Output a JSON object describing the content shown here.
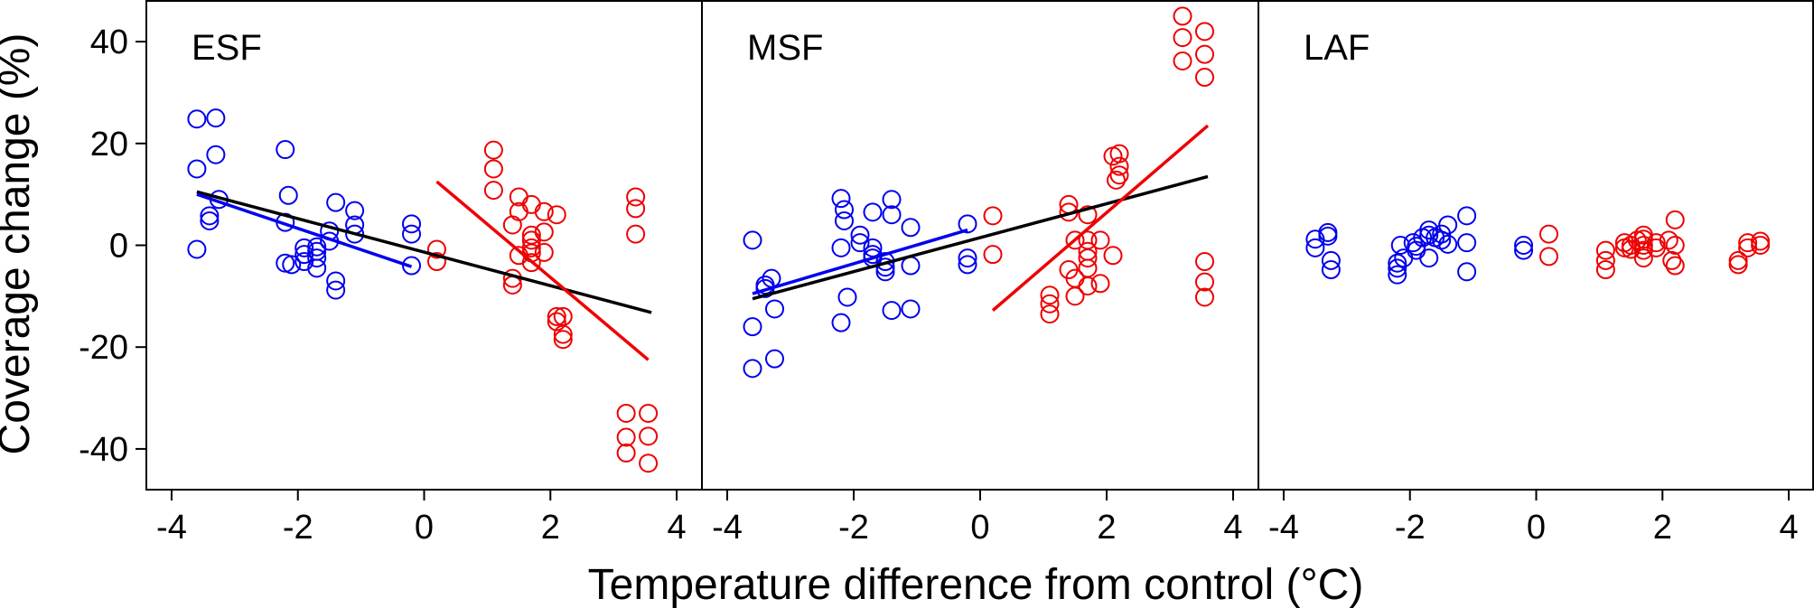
{
  "chart_data": {
    "type": "scatter",
    "xlabel": "Temperature difference from control (°C)",
    "ylabel": "Coverage change (%)",
    "xlim": [
      -4.4,
      4.4
    ],
    "ylim": [
      -48,
      48
    ],
    "xticks": [
      -4,
      -2,
      0,
      2,
      4
    ],
    "xtick_labels": [
      "-4",
      "-2",
      "0",
      "2",
      "4"
    ],
    "yticks": [
      -40,
      -20,
      0,
      20,
      40
    ],
    "ytick_labels": [
      "-40",
      "-20",
      "0",
      "20",
      "40"
    ],
    "colors": {
      "blue": "#0000ee",
      "red": "#ee0000",
      "black": "#000000"
    },
    "panels": [
      {
        "name": "ESF",
        "blue_points": [
          [
            -3.6,
            24.8
          ],
          [
            -3.6,
            15
          ],
          [
            -3.6,
            -0.8
          ],
          [
            -3.3,
            25
          ],
          [
            -3.3,
            17.8
          ],
          [
            -3.25,
            9
          ],
          [
            -3.4,
            5.8
          ],
          [
            -3.4,
            4.8
          ],
          [
            -2.2,
            18.8
          ],
          [
            -2.15,
            9.8
          ],
          [
            -2.2,
            4.5
          ],
          [
            -2.2,
            -3.5
          ],
          [
            -2.1,
            -3.8
          ],
          [
            -1.9,
            -0.5
          ],
          [
            -1.9,
            -1.8
          ],
          [
            -1.9,
            -3.2
          ],
          [
            -1.7,
            -0.3
          ],
          [
            -1.7,
            -1.2
          ],
          [
            -1.7,
            -2.5
          ],
          [
            -1.7,
            -4.5
          ],
          [
            -1.5,
            2.8
          ],
          [
            -1.5,
            0.8
          ],
          [
            -1.4,
            8.4
          ],
          [
            -1.4,
            -7
          ],
          [
            -1.4,
            -8.8
          ],
          [
            -1.1,
            6.8
          ],
          [
            -1.1,
            4
          ],
          [
            -1.1,
            2.2
          ],
          [
            -0.2,
            4.2
          ],
          [
            -0.2,
            2.2
          ],
          [
            -0.2,
            -4
          ]
        ],
        "red_points": [
          [
            0.2,
            -0.8
          ],
          [
            0.2,
            -3.2
          ],
          [
            1.1,
            18.7
          ],
          [
            1.1,
            15
          ],
          [
            1.1,
            10.8
          ],
          [
            1.4,
            4
          ],
          [
            1.4,
            -6.5
          ],
          [
            1.4,
            -7.8
          ],
          [
            1.5,
            9.5
          ],
          [
            1.5,
            6.6
          ],
          [
            1.5,
            -2
          ],
          [
            1.7,
            8
          ],
          [
            1.7,
            2
          ],
          [
            1.7,
            1
          ],
          [
            1.7,
            -0.5
          ],
          [
            1.7,
            -1.5
          ],
          [
            1.7,
            -3.4
          ],
          [
            1.9,
            6.6
          ],
          [
            1.9,
            2.6
          ],
          [
            1.9,
            -1.4
          ],
          [
            2.1,
            6
          ],
          [
            2.1,
            -14
          ],
          [
            2.1,
            -15
          ],
          [
            2.2,
            -14
          ],
          [
            2.2,
            -17.5
          ],
          [
            2.2,
            -18.5
          ],
          [
            3.2,
            -33
          ],
          [
            3.2,
            -37.7
          ],
          [
            3.2,
            -40.8
          ],
          [
            3.35,
            9.5
          ],
          [
            3.35,
            7.2
          ],
          [
            3.35,
            2.2
          ],
          [
            3.55,
            -33
          ],
          [
            3.55,
            -37.5
          ],
          [
            3.55,
            -42.8
          ]
        ],
        "lines": [
          {
            "color": "black",
            "x": [
              -3.6,
              3.6
            ],
            "y": [
              10.5,
              -13.2
            ]
          },
          {
            "color": "blue",
            "x": [
              -3.6,
              -0.2
            ],
            "y": [
              10,
              -4.2
            ]
          },
          {
            "color": "red",
            "x": [
              0.2,
              3.55
            ],
            "y": [
              12.5,
              -22.5
            ]
          }
        ]
      },
      {
        "name": "MSF",
        "blue_points": [
          [
            -3.6,
            1
          ],
          [
            -3.6,
            -16
          ],
          [
            -3.6,
            -24.2
          ],
          [
            -3.4,
            -7.8
          ],
          [
            -3.4,
            -8.5
          ],
          [
            -3.3,
            -6.5
          ],
          [
            -3.25,
            -12.5
          ],
          [
            -3.25,
            -22.3
          ],
          [
            -2.2,
            9.2
          ],
          [
            -2.15,
            7
          ],
          [
            -2.15,
            4.8
          ],
          [
            -2.2,
            -0.5
          ],
          [
            -2.1,
            -10.2
          ],
          [
            -2.2,
            -15.2
          ],
          [
            -1.9,
            2
          ],
          [
            -1.9,
            0.5
          ],
          [
            -1.7,
            6.5
          ],
          [
            -1.7,
            -0.5
          ],
          [
            -1.7,
            -1.8
          ],
          [
            -1.7,
            -2.5
          ],
          [
            -1.5,
            -3.2
          ],
          [
            -1.5,
            -4.3
          ],
          [
            -1.5,
            -5.2
          ],
          [
            -1.4,
            9
          ],
          [
            -1.4,
            6
          ],
          [
            -1.4,
            -12.8
          ],
          [
            -1.1,
            3.5
          ],
          [
            -1.1,
            -4
          ],
          [
            -1.1,
            -12.5
          ],
          [
            -0.2,
            4.2
          ],
          [
            -0.2,
            -2.5
          ],
          [
            -0.2,
            -3.8
          ]
        ],
        "red_points": [
          [
            0.2,
            5.8
          ],
          [
            0.2,
            -1.8
          ],
          [
            1.1,
            -9.8
          ],
          [
            1.1,
            -11.5
          ],
          [
            1.1,
            -13.5
          ],
          [
            1.4,
            8
          ],
          [
            1.4,
            6.5
          ],
          [
            1.4,
            -4.8
          ],
          [
            1.5,
            1
          ],
          [
            1.5,
            -6.5
          ],
          [
            1.5,
            -10
          ],
          [
            1.7,
            6
          ],
          [
            1.7,
            1
          ],
          [
            1.7,
            -1.2
          ],
          [
            1.7,
            -2.5
          ],
          [
            1.7,
            -4.5
          ],
          [
            1.7,
            -8
          ],
          [
            1.9,
            1
          ],
          [
            1.9,
            -7.5
          ],
          [
            2.1,
            17.5
          ],
          [
            2.15,
            12.8
          ],
          [
            2.2,
            18
          ],
          [
            2.2,
            15.5
          ],
          [
            2.2,
            13.8
          ],
          [
            2.1,
            -2
          ],
          [
            3.2,
            45
          ],
          [
            3.2,
            40.8
          ],
          [
            3.2,
            36.2
          ],
          [
            3.55,
            42
          ],
          [
            3.55,
            37.5
          ],
          [
            3.55,
            33
          ],
          [
            3.55,
            -3.2
          ],
          [
            3.55,
            -7.2
          ],
          [
            3.55,
            -10.2
          ]
        ],
        "lines": [
          {
            "color": "black",
            "x": [
              -3.6,
              3.6
            ],
            "y": [
              -10.5,
              13.5
            ]
          },
          {
            "color": "blue",
            "x": [
              -3.6,
              -0.2
            ],
            "y": [
              -9.5,
              3
            ]
          },
          {
            "color": "red",
            "x": [
              0.2,
              3.6
            ],
            "y": [
              -12.8,
              23.5
            ]
          }
        ]
      },
      {
        "name": "LAF",
        "blue_points": [
          [
            -3.5,
            1.2
          ],
          [
            -3.5,
            -0.5
          ],
          [
            -3.3,
            2.5
          ],
          [
            -3.3,
            1.8
          ],
          [
            -3.25,
            -3
          ],
          [
            -3.25,
            -4.8
          ],
          [
            -2.2,
            -3.5
          ],
          [
            -2.2,
            -4.5
          ],
          [
            -2.2,
            -5.8
          ],
          [
            -2.15,
            0
          ],
          [
            -2.1,
            -2.5
          ],
          [
            -1.95,
            0.5
          ],
          [
            -1.9,
            -0.2
          ],
          [
            -1.9,
            -1
          ],
          [
            -1.8,
            1.5
          ],
          [
            -1.7,
            3
          ],
          [
            -1.7,
            2
          ],
          [
            -1.7,
            -2.5
          ],
          [
            -1.6,
            1.5
          ],
          [
            -1.5,
            2.2
          ],
          [
            -1.5,
            1
          ],
          [
            -1.4,
            4
          ],
          [
            -1.4,
            0.2
          ],
          [
            -1.1,
            5.8
          ],
          [
            -1.1,
            0.5
          ],
          [
            -1.1,
            -5.2
          ],
          [
            -0.2,
            0
          ],
          [
            -0.2,
            -1
          ]
        ],
        "red_points": [
          [
            0.2,
            2.2
          ],
          [
            0.2,
            -2.2
          ],
          [
            1.1,
            -1
          ],
          [
            1.1,
            -3
          ],
          [
            1.1,
            -4.8
          ],
          [
            1.4,
            0.5
          ],
          [
            1.4,
            -0.5
          ],
          [
            1.5,
            0
          ],
          [
            1.5,
            -0.8
          ],
          [
            1.6,
            1
          ],
          [
            1.7,
            2
          ],
          [
            1.7,
            1.2
          ],
          [
            1.7,
            0
          ],
          [
            1.7,
            -1
          ],
          [
            1.7,
            -2.5
          ],
          [
            1.9,
            0.5
          ],
          [
            1.9,
            -0.5
          ],
          [
            2.1,
            1
          ],
          [
            2.15,
            -3
          ],
          [
            2.2,
            5
          ],
          [
            2.2,
            0
          ],
          [
            2.2,
            -4
          ],
          [
            3.2,
            -3
          ],
          [
            3.2,
            -3.8
          ],
          [
            3.35,
            0.5
          ],
          [
            3.35,
            -0.5
          ],
          [
            3.55,
            0.8
          ],
          [
            3.55,
            0
          ]
        ],
        "lines": []
      }
    ]
  }
}
